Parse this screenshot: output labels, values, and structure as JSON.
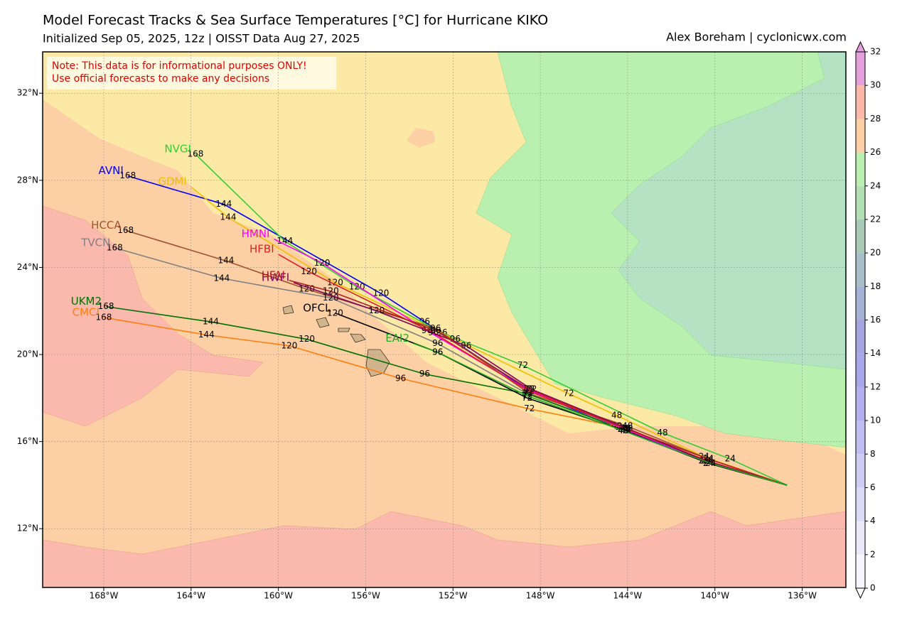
{
  "chart_data": {
    "type": "track",
    "title": "Model Forecast Tracks & Sea Surface Temperatures [°C] for Hurricane KIKO",
    "subtitle": "Initialized Sep 05, 2025, 12z | OISST Data Aug 27, 2025",
    "credit": "Alex Boreham | cyclonicwx.com",
    "annotations": [
      "Note: This data is for informational purposes ONLY!",
      "Use official forecasts to make any decisions"
    ],
    "xlim": [
      -170.8,
      -134.0
    ],
    "ylim": [
      9.3,
      33.9
    ],
    "grid": true,
    "xticks": [
      {
        "value": -168,
        "label": "168°W"
      },
      {
        "value": -164,
        "label": "164°W"
      },
      {
        "value": -160,
        "label": "160°W"
      },
      {
        "value": -156,
        "label": "156°W"
      },
      {
        "value": -152,
        "label": "152°W"
      },
      {
        "value": -148,
        "label": "148°W"
      },
      {
        "value": -144,
        "label": "144°W"
      },
      {
        "value": -140,
        "label": "140°W"
      },
      {
        "value": -136,
        "label": "136°W"
      }
    ],
    "yticks": [
      {
        "value": 12,
        "label": "12°N"
      },
      {
        "value": 16,
        "label": "16°N"
      },
      {
        "value": 20,
        "label": "20°N"
      },
      {
        "value": 24,
        "label": "24°N"
      },
      {
        "value": 28,
        "label": "28°N"
      },
      {
        "value": 32,
        "label": "32°N"
      }
    ],
    "colorbar": {
      "lim": [
        0,
        32
      ],
      "ticks": [
        0,
        2,
        4,
        6,
        8,
        10,
        12,
        14,
        16,
        18,
        20,
        22,
        24,
        26,
        28,
        30,
        32
      ],
      "colors": [
        "#f6f4fc",
        "#eceafa",
        "#dcdaf6",
        "#cfccf4",
        "#c0bdf0",
        "#b4b0ee",
        "#aaa6ea",
        "#a5a6e0",
        "#a5b2d6",
        "#a8bec8",
        "#aacab8",
        "#b4deb4",
        "#b9f0b0",
        "#fccfa4",
        "#fbb7a8",
        "#e4a0dc"
      ]
    },
    "series": [
      {
        "name": "AVNI",
        "color": "#0000ff",
        "x": [
          -136.7,
          -140.5,
          -144.2,
          -148.6,
          -153.3,
          -155.3,
          -162.5,
          -166.9
        ],
        "values": [
          14.0,
          15.1,
          16.5,
          18.4,
          21.5,
          22.8,
          26.9,
          28.2
        ],
        "hours": [
          null,
          24,
          48,
          72,
          96,
          120,
          144,
          168
        ]
      },
      {
        "name": "NVGI",
        "color": "#33cc33",
        "x": [
          -136.7,
          -139.3,
          -142.4,
          -148.8,
          -152.5,
          -156.4,
          -159.7,
          -163.8
        ],
        "values": [
          14.0,
          15.2,
          16.4,
          19.5,
          21.0,
          23.1,
          25.2,
          29.2
        ],
        "hours": [
          null,
          24,
          48,
          72,
          96,
          120,
          144,
          168
        ]
      },
      {
        "name": "GDMI",
        "color": "#f0c000",
        "x": [
          -136.7,
          -140.5,
          -144.5,
          -146.7,
          -151.9,
          -157.4,
          -162.3,
          -164.0
        ],
        "values": [
          14.0,
          15.3,
          17.2,
          18.2,
          20.7,
          23.3,
          26.3,
          27.7
        ],
        "hours": [
          null,
          24,
          48,
          72,
          96,
          120,
          144,
          null
        ]
      },
      {
        "name": "HCCA",
        "color": "#a0522d",
        "x": [
          -136.7,
          -140.3,
          -144.0,
          -148.5,
          -152.8,
          -158.7,
          -162.4,
          -167.0
        ],
        "values": [
          14.0,
          15.2,
          16.7,
          18.2,
          21.2,
          23.0,
          24.3,
          25.7
        ],
        "hours": [
          null,
          24,
          48,
          72,
          96,
          120,
          144,
          168
        ]
      },
      {
        "name": "TVCN",
        "color": "#808080",
        "x": [
          -136.7,
          -140.4,
          -144.2,
          -148.6,
          -152.7,
          -157.6,
          -162.6,
          -167.5
        ],
        "values": [
          14.0,
          15.1,
          16.6,
          18.2,
          20.5,
          22.6,
          23.5,
          24.9
        ],
        "hours": [
          null,
          24,
          48,
          72,
          96,
          120,
          144,
          168
        ]
      },
      {
        "name": "UKM2",
        "color": "#007000",
        "x": [
          -136.7,
          -140.2,
          -144.3,
          -148.6,
          -153.3,
          -158.7,
          -163.1,
          -167.9
        ],
        "values": [
          14.0,
          15.0,
          16.6,
          18.2,
          19.1,
          20.7,
          21.5,
          22.2
        ],
        "hours": [
          null,
          24,
          48,
          72,
          96,
          120,
          144,
          168
        ]
      },
      {
        "name": "CMCI",
        "color": "#ff7f0e",
        "x": [
          -136.7,
          -140.5,
          -144.5,
          -148.5,
          -154.4,
          -159.5,
          -163.3,
          -168.0
        ],
        "values": [
          14.0,
          15.1,
          16.7,
          17.5,
          18.9,
          20.4,
          20.9,
          21.7
        ],
        "hours": [
          null,
          24,
          48,
          72,
          96,
          120,
          144,
          168
        ]
      },
      {
        "name": "HMNI",
        "color": "#ff00ff",
        "x": [
          -136.7,
          -140.5,
          -144.2,
          -148.6,
          -153.2,
          -158.0,
          -160.2
        ],
        "values": [
          14.0,
          15.1,
          16.6,
          18.4,
          21.1,
          24.2,
          25.3
        ],
        "hours": [
          null,
          24,
          48,
          72,
          96,
          120,
          null
        ]
      },
      {
        "name": "HFBI",
        "color": "#e02020",
        "x": [
          -136.7,
          -140.3,
          -144.1,
          -148.5,
          -152.9,
          -158.6,
          -160.0
        ],
        "values": [
          14.0,
          15.1,
          16.6,
          18.3,
          21.0,
          23.8,
          24.6
        ],
        "hours": [
          null,
          24,
          48,
          72,
          96,
          120,
          null
        ]
      },
      {
        "name": "HWFI",
        "color": "#800060",
        "x": [
          -136.7,
          -140.4,
          -144.0,
          -148.4,
          -151.4,
          -155.5,
          -159.3
        ],
        "values": [
          14.0,
          15.1,
          16.6,
          18.4,
          20.4,
          22.0,
          23.3
        ],
        "hours": [
          null,
          24,
          48,
          72,
          96,
          120,
          null
        ]
      },
      {
        "name": "HFAI",
        "color": "#b22222",
        "x": [
          -136.7,
          -140.3,
          -144.1,
          -148.5,
          -152.8,
          -157.6,
          -159.5
        ],
        "values": [
          14.0,
          15.2,
          16.6,
          18.4,
          21.1,
          22.9,
          23.4
        ],
        "hours": [
          null,
          24,
          48,
          72,
          96,
          120,
          null
        ]
      },
      {
        "name": "OFCL",
        "color": "#000000",
        "x": [
          -136.7,
          -140.3,
          -144.1,
          -148.6,
          -152.7,
          -157.4
        ],
        "values": [
          14.0,
          15.0,
          16.5,
          18.0,
          20.1,
          21.9
        ],
        "hours": [
          null,
          24,
          48,
          72,
          96,
          120
        ]
      },
      {
        "name": "EAI2",
        "color": "#22aa22",
        "x": [
          -136.7,
          -140.2,
          -144.2,
          -148.6,
          -152.7,
          -153.8
        ],
        "values": [
          14.0,
          15.0,
          16.5,
          18.1,
          20.1,
          20.5
        ],
        "hours": [
          null,
          24,
          48,
          72,
          96,
          null
        ]
      }
    ]
  }
}
